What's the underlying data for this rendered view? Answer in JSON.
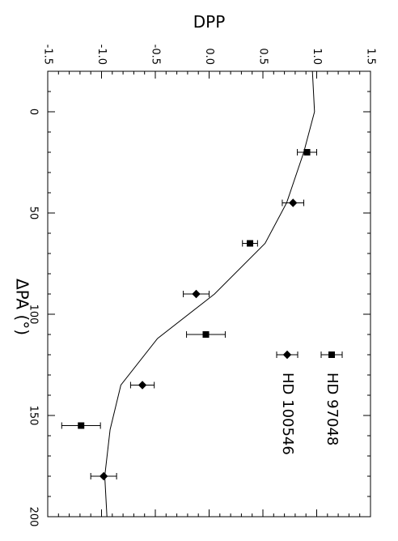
{
  "chart_data": {
    "type": "scatter",
    "orientation": "rotated-90",
    "xlabel": "ΔPA  (°)",
    "ylabel": "DPP",
    "xlim": [
      -20,
      200
    ],
    "ylim": [
      -1.5,
      1.5
    ],
    "x_ticks": [
      "0",
      "50",
      "100",
      "150",
      "200"
    ],
    "y_ticks": [
      "-1.5",
      "-1.0",
      "-0.5",
      "0.0",
      "0.5",
      "1.0",
      "1.5"
    ],
    "model_curve": {
      "x": [
        -20,
        0,
        20,
        45,
        65,
        90,
        112,
        135,
        157,
        180,
        200
      ],
      "y": [
        0.96,
        0.98,
        0.88,
        0.72,
        0.52,
        0.05,
        -0.48,
        -0.82,
        -0.92,
        -0.97,
        -0.95
      ]
    },
    "series": [
      {
        "name": "HD 97048",
        "marker": "square",
        "points": [
          {
            "x": 20,
            "y": 0.91,
            "err": 0.09
          },
          {
            "x": 65,
            "y": 0.38,
            "err": 0.07
          },
          {
            "x": 110,
            "y": -0.03,
            "err": 0.18
          },
          {
            "x": 155,
            "y": -1.19,
            "err": 0.18
          }
        ]
      },
      {
        "name": "HD 100546",
        "marker": "diamond",
        "points": [
          {
            "x": 45,
            "y": 0.78,
            "err": 0.1
          },
          {
            "x": 90,
            "y": -0.12,
            "err": 0.12
          },
          {
            "x": 135,
            "y": -0.62,
            "err": 0.11
          },
          {
            "x": 180,
            "y": -0.98,
            "err": 0.12
          }
        ]
      }
    ],
    "legend": [
      {
        "label": "HD 97048",
        "marker": "square"
      },
      {
        "label": "HD 100546",
        "marker": "diamond"
      }
    ],
    "legend_placement": "top-right",
    "grid": false
  }
}
